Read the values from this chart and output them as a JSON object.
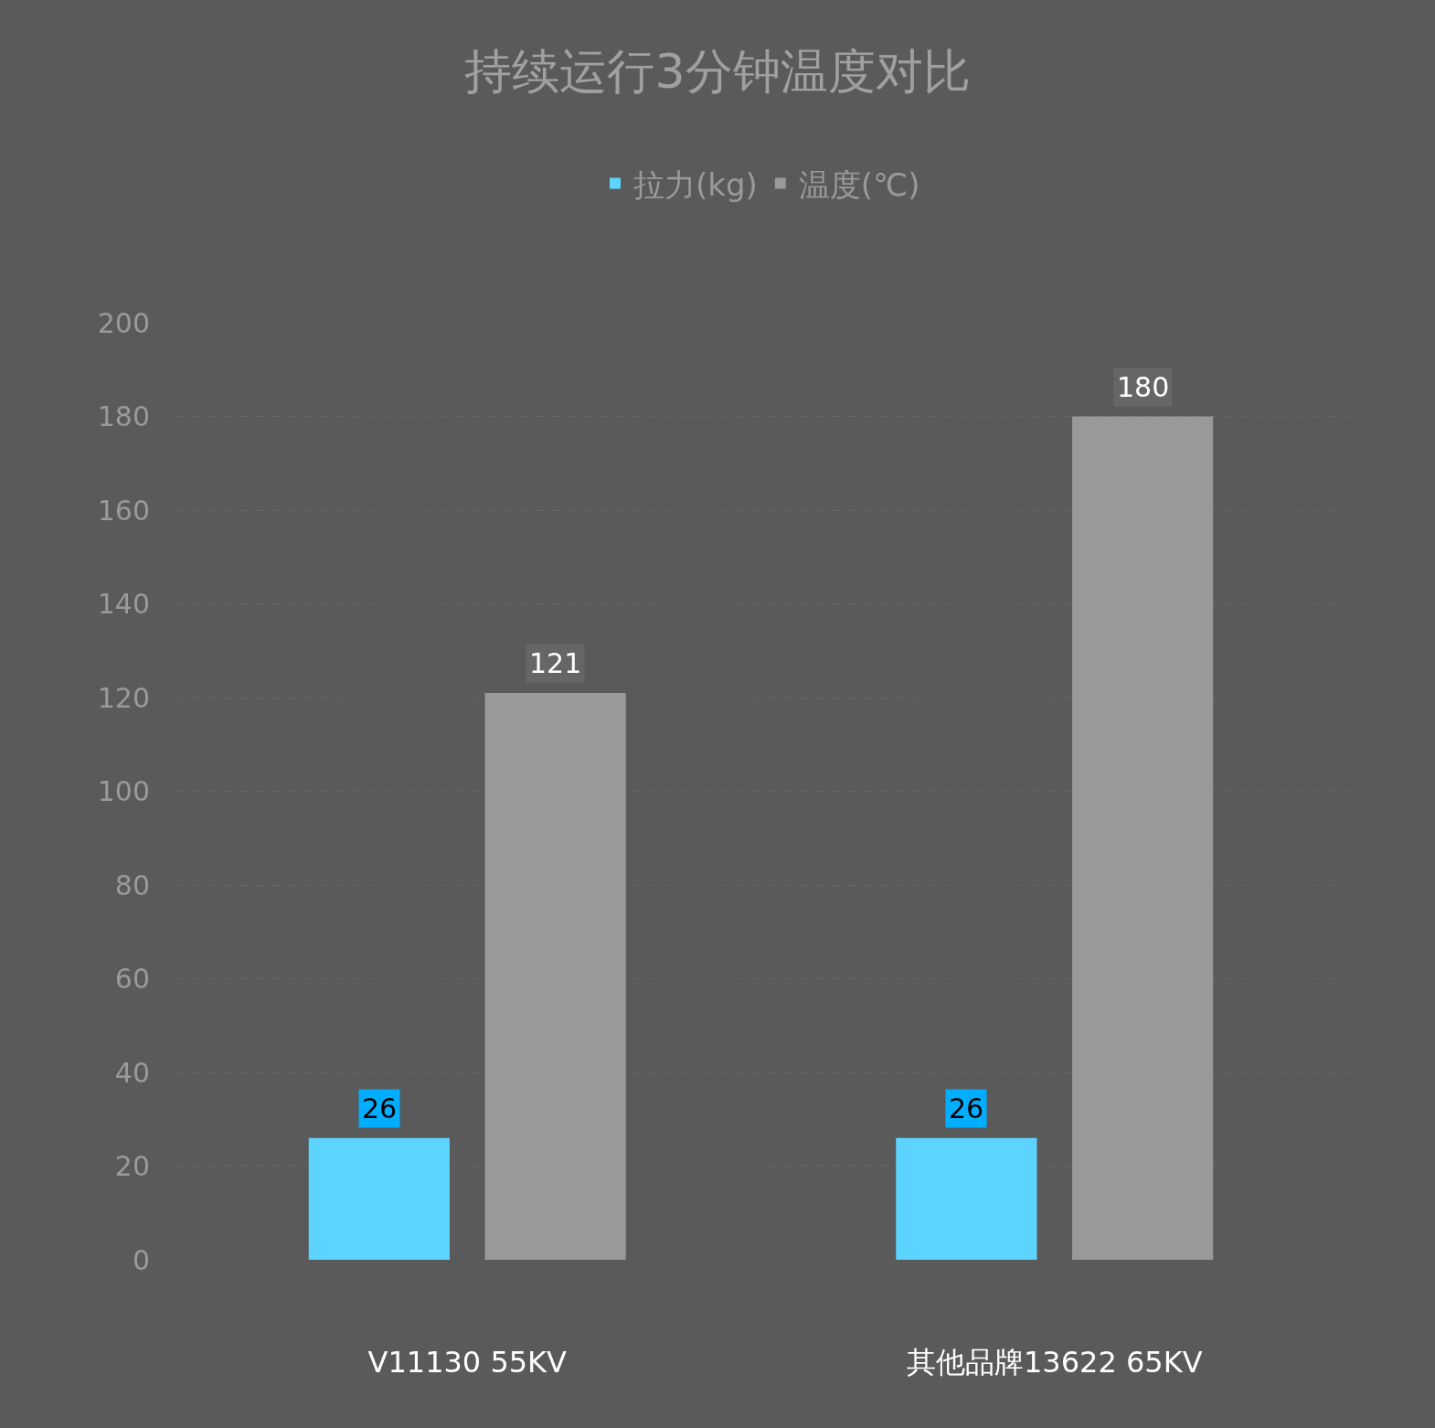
{
  "chart_data": {
    "type": "bar",
    "title": "持续运行3分钟温度对比",
    "categories": [
      "V11130 55KV",
      "其他品牌13622 65KV"
    ],
    "series": [
      {
        "name": "拉力(kg)",
        "color": "#5dd3ff",
        "values": [
          26,
          26
        ]
      },
      {
        "name": "温度(℃)",
        "color": "#999999",
        "values": [
          121,
          180
        ]
      }
    ],
    "ylim": [
      0,
      200
    ],
    "yticks": [
      0,
      20,
      40,
      60,
      80,
      100,
      120,
      140,
      160,
      180,
      200
    ],
    "grid": "y",
    "legend": "top",
    "data_labels": true
  }
}
